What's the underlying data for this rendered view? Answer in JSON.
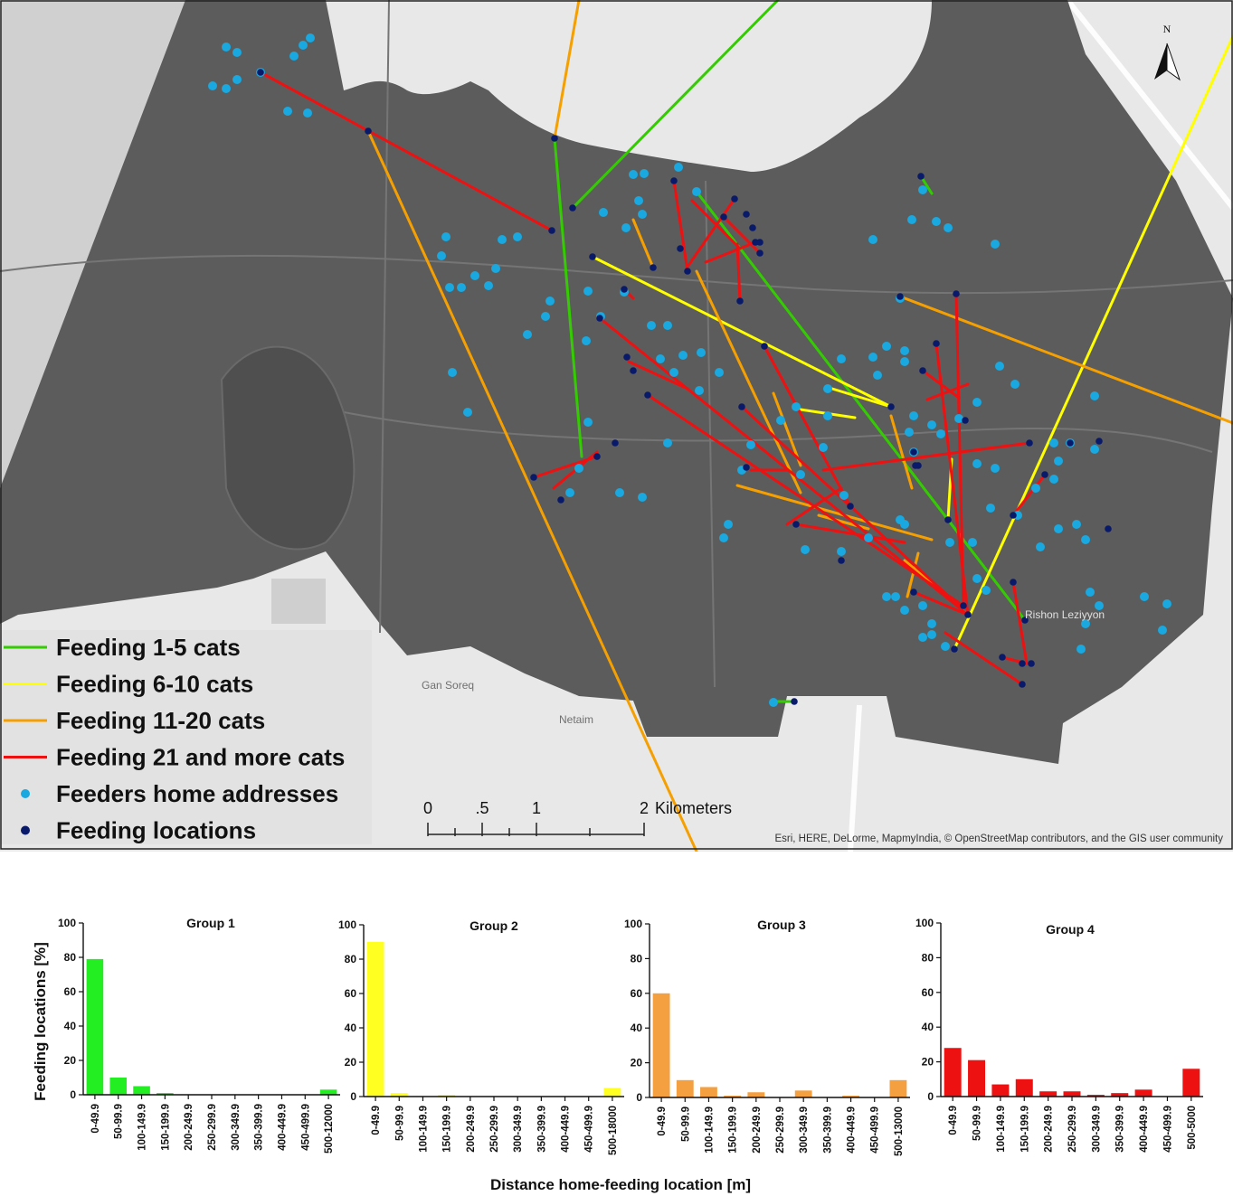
{
  "map": {
    "legend": [
      {
        "label": "Feeding 1-5 cats",
        "color": "#33cc00",
        "kind": "line"
      },
      {
        "label": "Feeding 6-10 cats",
        "color": "#ffff00",
        "kind": "line"
      },
      {
        "label": "Feeding 11-20 cats",
        "color": "#f5a000",
        "kind": "line"
      },
      {
        "label": "Feeding 21 and more cats",
        "color": "#ee1111",
        "kind": "line"
      },
      {
        "label": "Feeders home addresses",
        "color": "#19a8e0",
        "kind": "dot"
      },
      {
        "label": "Feeding locations",
        "color": "#0a1a6a",
        "kind": "dot"
      }
    ],
    "scalebar": {
      "ticks": [
        "0",
        ".5",
        "1",
        "2"
      ],
      "unit": "Kilometers"
    },
    "north": "N",
    "places": [
      "Rishon Leziyyon",
      "Gan Soreq",
      "Netaim"
    ],
    "attribution": "Esri, HERE, DeLorme, MapmyIndia, © OpenStreetMap contributors, and the GIS user community"
  },
  "chart_data": {
    "type": "bar",
    "ylabel": "Feeding locations [%]",
    "xlabel": "Distance home-feeding location [m]",
    "ylim": [
      0,
      100
    ],
    "yticks": [
      0,
      20,
      40,
      60,
      80,
      100
    ],
    "charts": [
      {
        "title": "Group 1",
        "color": "#22ee22",
        "categories": [
          "0-49.9",
          "50-99.9",
          "100-149.9",
          "150-199.9",
          "200-249.9",
          "250-299.9",
          "300-349.9",
          "350-399.9",
          "400-449.9",
          "450-499.9",
          "500-12000"
        ],
        "values": [
          79,
          10,
          5,
          1,
          0,
          0,
          0,
          0,
          0,
          0,
          3
        ]
      },
      {
        "title": "Group 2",
        "color": "#ffff22",
        "categories": [
          "0-49.9",
          "50-99.9",
          "100-149.9",
          "150-199.9",
          "200-249.9",
          "250-299.9",
          "300-349.9",
          "350-399.9",
          "400-449.9",
          "450-499.9",
          "500-18000"
        ],
        "values": [
          90,
          2,
          0,
          1,
          0,
          0,
          0,
          0,
          0,
          0,
          5
        ]
      },
      {
        "title": "Group 3",
        "color": "#f5a040",
        "categories": [
          "0-49.9",
          "50-99.9",
          "100-149.9",
          "150-199.9",
          "200-249.9",
          "250-299.9",
          "300-349.9",
          "350-399.9",
          "400-449.9",
          "450-499.9",
          "500-13000"
        ],
        "values": [
          60,
          10,
          6,
          1,
          3,
          0,
          4,
          0,
          1,
          0,
          10
        ]
      },
      {
        "title": "Group 4",
        "color": "#ee1111",
        "categories": [
          "0-49.9",
          "50-99.9",
          "100-149.9",
          "150-199.9",
          "200-249.9",
          "250-299.9",
          "300-349.9",
          "350-399.9",
          "400-449.9",
          "450-499.9",
          "500-5000"
        ],
        "values": [
          28,
          21,
          7,
          10,
          3,
          3,
          1,
          2,
          4,
          0,
          16
        ]
      }
    ]
  }
}
